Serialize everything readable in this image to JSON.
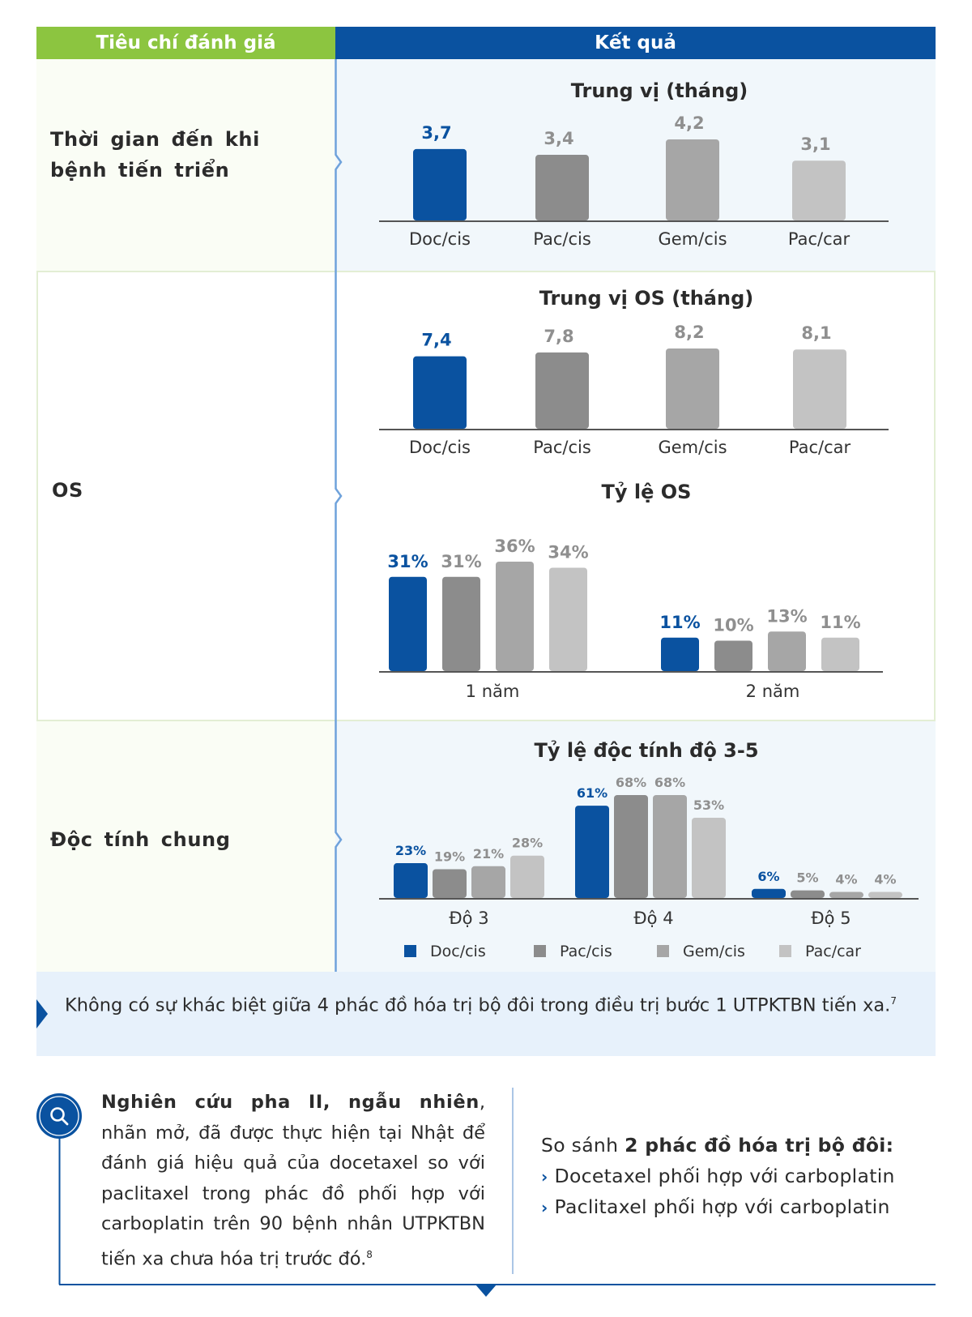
{
  "header": {
    "criteria_label": "Tiêu chí đánh giá",
    "results_label": "Kết quả"
  },
  "rows": [
    {
      "label": "Thời gian đến khi bệnh tiến triển"
    },
    {
      "label": "OS"
    },
    {
      "label": "Độc tính chung"
    }
  ],
  "colors": {
    "header_green": "#8cc540",
    "header_blue": "#0a52a0",
    "doc_cis": "#0a52a0",
    "pac_cis": "#8c8c8c",
    "gem_cis": "#a6a6a6",
    "pac_car": "#c3c3c3",
    "gray_label": "#8f8f8f"
  },
  "chart_data": [
    {
      "type": "bar",
      "title": "Trung vị (tháng)",
      "categories": [
        "Doc/cis",
        "Pac/cis",
        "Gem/cis",
        "Pac/car"
      ],
      "values": [
        3.7,
        3.4,
        4.2,
        3.1
      ],
      "labels": [
        "3,7",
        "3,4",
        "4,2",
        "3,1"
      ],
      "xlabel": "",
      "ylabel": "",
      "ylim": [
        0,
        4.2
      ],
      "grid": false
    },
    {
      "type": "bar",
      "title": "Trung vị OS (tháng)",
      "categories": [
        "Doc/cis",
        "Pac/cis",
        "Gem/cis",
        "Pac/car"
      ],
      "values": [
        7.4,
        7.8,
        8.2,
        8.1
      ],
      "labels": [
        "7,4",
        "7,8",
        "8,2",
        "8,1"
      ],
      "xlabel": "",
      "ylabel": "",
      "ylim": [
        0,
        8.2
      ],
      "grid": false
    },
    {
      "type": "bar",
      "title": "Tỷ lệ OS",
      "categories": [
        "1 năm",
        "2 năm"
      ],
      "series": [
        {
          "name": "Doc/cis",
          "values": [
            31,
            11
          ],
          "labels": [
            "31%",
            "11%"
          ]
        },
        {
          "name": "Pac/cis",
          "values": [
            31,
            10
          ],
          "labels": [
            "31%",
            "10%"
          ]
        },
        {
          "name": "Gem/cis",
          "values": [
            36,
            13
          ],
          "labels": [
            "36%",
            "13%"
          ]
        },
        {
          "name": "Pac/car",
          "values": [
            34,
            11
          ],
          "labels": [
            "34%",
            "11%"
          ]
        }
      ],
      "ylim": [
        0,
        36
      ],
      "grid": false
    },
    {
      "type": "bar",
      "title": "Tỷ lệ độc tính độ 3-5",
      "categories": [
        "Độ 3",
        "Độ 4",
        "Độ 5"
      ],
      "series": [
        {
          "name": "Doc/cis",
          "values": [
            23,
            61,
            6
          ],
          "labels": [
            "23%",
            "61%",
            "6%"
          ]
        },
        {
          "name": "Pac/cis",
          "values": [
            19,
            68,
            5
          ],
          "labels": [
            "19%",
            "68%",
            "5%"
          ]
        },
        {
          "name": "Gem/cis",
          "values": [
            21,
            68,
            4
          ],
          "labels": [
            "21%",
            "68%",
            "4%"
          ]
        },
        {
          "name": "Pac/car",
          "values": [
            28,
            53,
            4
          ],
          "labels": [
            "28%",
            "53%",
            "4%"
          ]
        }
      ],
      "legend": [
        "Doc/cis",
        "Pac/cis",
        "Gem/cis",
        "Pac/car"
      ],
      "legend_position": "bottom",
      "ylim": [
        0,
        68
      ],
      "grid": false
    }
  ],
  "summary": {
    "text": "Không có sự khác biệt giữa 4 phác đồ hóa trị bộ đôi trong điều trị bước 1 UTPKTBN tiến xa.",
    "ref": "7"
  },
  "study": {
    "icon": "search-icon",
    "bold_text": "Nghiên cứu pha II, ngẫu nhiên",
    "text": ", nhãn mở, đã được thực hiện tại Nhật để đánh giá hiệu quả của docetaxel so với paclitaxel trong phác đồ phối hợp với carboplatin trên 90 bệnh nhân UTPKTBN tiến xa chưa hóa trị trước đó.",
    "ref": "8"
  },
  "compare": {
    "prefix": "So sánh ",
    "bold": "2 phác đồ hóa trị bộ đôi:",
    "items": [
      "Docetaxel phối hợp với carboplatin",
      "Paclitaxel phối hợp với carboplatin"
    ]
  }
}
